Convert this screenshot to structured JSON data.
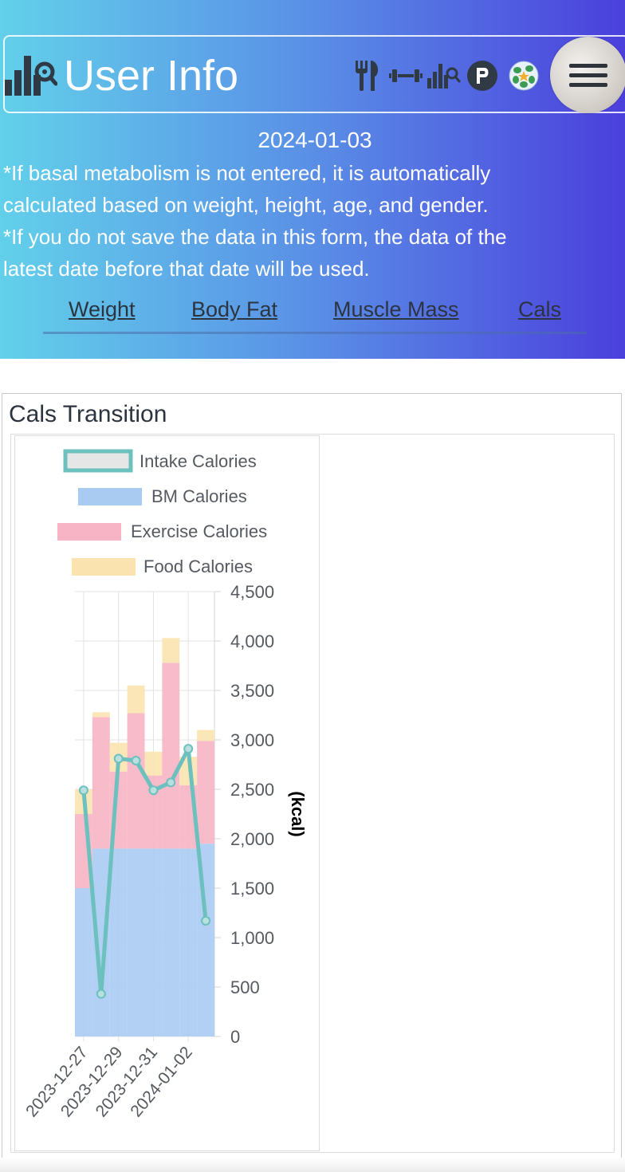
{
  "header": {
    "title": "User Info",
    "icons": [
      "stats-search-icon",
      "fork-knife-icon",
      "dumbbell-icon",
      "stats-icon",
      "parking-icon",
      "avatar-icon",
      "menu-icon"
    ]
  },
  "info": {
    "date": "2024-01-03",
    "note1_line1": "*If basal metabolism is not entered, it is automatically",
    "note1_line2": "calculated based on weight, height, age, and gender.",
    "note2_line1": "*If you do not save the data in this form, the data of the",
    "note2_line2": "latest date before that date will be used."
  },
  "tabs": [
    "Weight",
    "Body Fat",
    "Muscle Mass",
    "Cals"
  ],
  "chart_card": {
    "title": "Cals Transition"
  },
  "colors": {
    "gradient_start": "#62d0ea",
    "gradient_end": "#4b3fdc",
    "intake": "#6cc0bd",
    "bm": "#a9cbf2",
    "exercise": "#f6b4c4",
    "food": "#fbe3b0"
  },
  "chart_data": {
    "type": "bar",
    "stacked": true,
    "x": [
      "2023-12-27",
      "2023-12-28",
      "2023-12-29",
      "2023-12-30",
      "2023-12-31",
      "2024-01-01",
      "2024-01-02",
      "2024-01-03"
    ],
    "x_tick_labels": [
      "2023-12-27",
      "2023-12-29",
      "2023-12-31",
      "2024-01-02"
    ],
    "series": [
      {
        "name": "BM Calories",
        "type": "bar",
        "values": [
          1500,
          1900,
          1900,
          1900,
          1900,
          1900,
          1900,
          1950
        ]
      },
      {
        "name": "Exercise Calories",
        "type": "bar",
        "values": [
          750,
          1330,
          780,
          1370,
          740,
          1880,
          640,
          1040
        ]
      },
      {
        "name": "Food Calories",
        "type": "bar",
        "values": [
          250,
          50,
          290,
          280,
          240,
          250,
          290,
          110
        ]
      },
      {
        "name": "Intake Calories",
        "type": "line",
        "values": [
          2490,
          430,
          2810,
          2790,
          2490,
          2570,
          2910,
          1170
        ]
      }
    ],
    "ylabel": "(kcal)",
    "y_ticks": [
      0,
      500,
      1000,
      1500,
      2000,
      2500,
      3000,
      3500,
      4000,
      4500
    ],
    "y_tick_labels": [
      "0",
      "500",
      "1,000",
      "1,500",
      "2,000",
      "2,500",
      "3,000",
      "3,500",
      "4,000",
      "4,500"
    ],
    "ylim": [
      0,
      4500
    ],
    "y_axis_position": "right",
    "legend_position": "top",
    "grid": true
  }
}
